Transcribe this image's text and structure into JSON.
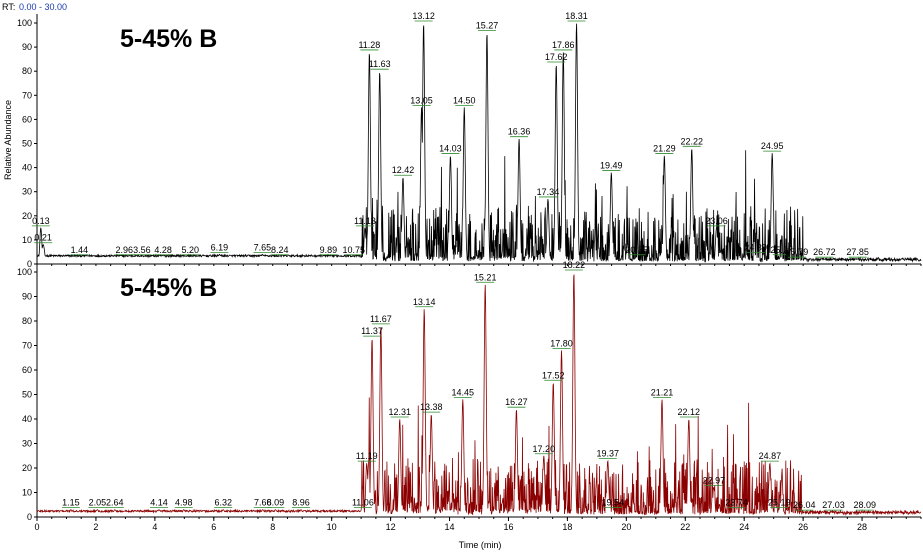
{
  "header": {
    "rt_prefix": "RT:",
    "rt_range": "0.00 - 30.00"
  },
  "colors": {
    "top_trace": "#000000",
    "bottom_trace": "#8b0000",
    "label_tick": "#2e8b2e",
    "rt_range_text": "#1a3caa"
  },
  "chart_data": [
    {
      "type": "line",
      "panel": "top",
      "annotation": "5-45% B",
      "ylabel": "Relative Abundance",
      "xlabel": "",
      "xlim": [
        0,
        30
      ],
      "ylim": [
        0,
        100
      ],
      "x_ticks": [
        0,
        2,
        4,
        6,
        8,
        10,
        12,
        14,
        16,
        18,
        20,
        22,
        24,
        26,
        28
      ],
      "y_ticks": [
        0,
        10,
        20,
        30,
        40,
        50,
        60,
        70,
        80,
        90,
        100
      ],
      "baseline_left": 3,
      "baseline_right": 1,
      "peaks": [
        {
          "rt": 0.13,
          "label": "0.13",
          "height": 15
        },
        {
          "rt": 0.21,
          "label": "0.21",
          "height": 8
        },
        {
          "rt": 1.44,
          "label": "1.44",
          "height": 3
        },
        {
          "rt": 2.96,
          "label": "2.96",
          "height": 3
        },
        {
          "rt": 3.56,
          "label": "3.56",
          "height": 3
        },
        {
          "rt": 4.28,
          "label": "4.28",
          "height": 3
        },
        {
          "rt": 5.2,
          "label": "5.20",
          "height": 3
        },
        {
          "rt": 6.19,
          "label": "6.19",
          "height": 4
        },
        {
          "rt": 7.65,
          "label": "7.65",
          "height": 4
        },
        {
          "rt": 8.24,
          "label": "8.24",
          "height": 3
        },
        {
          "rt": 9.89,
          "label": "9.89",
          "height": 3
        },
        {
          "rt": 10.75,
          "label": "10.75",
          "height": 3
        },
        {
          "rt": 11.13,
          "label": "11.13",
          "height": 15
        },
        {
          "rt": 11.28,
          "label": "11.28",
          "height": 88
        },
        {
          "rt": 11.63,
          "label": "11.63",
          "height": 80
        },
        {
          "rt": 12.42,
          "label": "12.42",
          "height": 36
        },
        {
          "rt": 13.05,
          "label": "13.05",
          "height": 65
        },
        {
          "rt": 13.12,
          "label": "13.12",
          "height": 100
        },
        {
          "rt": 14.03,
          "label": "14.03",
          "height": 45
        },
        {
          "rt": 14.5,
          "label": "14.50",
          "height": 65
        },
        {
          "rt": 15.27,
          "label": "15.27",
          "height": 96
        },
        {
          "rt": 16.36,
          "label": "16.36",
          "height": 52
        },
        {
          "rt": 17.34,
          "label": "17.34",
          "height": 27
        },
        {
          "rt": 17.62,
          "label": "17.62",
          "height": 83
        },
        {
          "rt": 17.86,
          "label": "17.86",
          "height": 88
        },
        {
          "rt": 18.31,
          "label": "18.31",
          "height": 100
        },
        {
          "rt": 19.49,
          "label": "19.49",
          "height": 38
        },
        {
          "rt": 20.35,
          "label": "20.35",
          "height": 3
        },
        {
          "rt": 21.29,
          "label": "21.29",
          "height": 45
        },
        {
          "rt": 22.22,
          "label": "22.22",
          "height": 48
        },
        {
          "rt": 23.06,
          "label": "23.06",
          "height": 15
        },
        {
          "rt": 24.39,
          "label": "24.39",
          "height": 4
        },
        {
          "rt": 24.95,
          "label": "24.95",
          "height": 46
        },
        {
          "rt": 25.27,
          "label": "25.27",
          "height": 3
        },
        {
          "rt": 25.79,
          "label": "25.79",
          "height": 2
        },
        {
          "rt": 26.72,
          "label": "26.72",
          "height": 2
        },
        {
          "rt": 27.85,
          "label": "27.85",
          "height": 2
        }
      ]
    },
    {
      "type": "line",
      "panel": "bottom",
      "annotation": "5-45% B",
      "ylabel": "",
      "xlabel": "Time (min)",
      "xlim": [
        0,
        30
      ],
      "ylim": [
        0,
        100
      ],
      "x_ticks": [
        0,
        2,
        4,
        6,
        8,
        10,
        12,
        14,
        16,
        18,
        20,
        22,
        24,
        26,
        28
      ],
      "y_ticks": [
        0,
        10,
        20,
        30,
        40,
        50,
        60,
        70,
        80,
        90,
        100
      ],
      "baseline_left": 2,
      "baseline_right": 1,
      "peaks": [
        {
          "rt": 1.15,
          "label": "1.15",
          "height": 3
        },
        {
          "rt": 2.05,
          "label": "2.05",
          "height": 3
        },
        {
          "rt": 2.64,
          "label": "2.64",
          "height": 3
        },
        {
          "rt": 4.14,
          "label": "4.14",
          "height": 3
        },
        {
          "rt": 4.98,
          "label": "4.98",
          "height": 3
        },
        {
          "rt": 6.32,
          "label": "6.32",
          "height": 3
        },
        {
          "rt": 7.66,
          "label": "7.66",
          "height": 3
        },
        {
          "rt": 8.09,
          "label": "8.09",
          "height": 3
        },
        {
          "rt": 8.96,
          "label": "8.96",
          "height": 3
        },
        {
          "rt": 11.06,
          "label": "11.06",
          "height": 3
        },
        {
          "rt": 11.19,
          "label": "11.19",
          "height": 22
        },
        {
          "rt": 11.37,
          "label": "11.37",
          "height": 73
        },
        {
          "rt": 11.67,
          "label": "11.67",
          "height": 78
        },
        {
          "rt": 12.31,
          "label": "12.31",
          "height": 40
        },
        {
          "rt": 13.14,
          "label": "13.14",
          "height": 85
        },
        {
          "rt": 13.38,
          "label": "13.38",
          "height": 42
        },
        {
          "rt": 14.45,
          "label": "14.45",
          "height": 48
        },
        {
          "rt": 15.21,
          "label": "15.21",
          "height": 95
        },
        {
          "rt": 16.27,
          "label": "16.27",
          "height": 44
        },
        {
          "rt": 17.2,
          "label": "17.20",
          "height": 25
        },
        {
          "rt": 17.52,
          "label": "17.52",
          "height": 55
        },
        {
          "rt": 17.8,
          "label": "17.80",
          "height": 68
        },
        {
          "rt": 18.22,
          "label": "18.22",
          "height": 100
        },
        {
          "rt": 19.37,
          "label": "19.37",
          "height": 23
        },
        {
          "rt": 19.54,
          "label": "19.54",
          "height": 3
        },
        {
          "rt": 21.21,
          "label": "21.21",
          "height": 48
        },
        {
          "rt": 22.12,
          "label": "22.12",
          "height": 40
        },
        {
          "rt": 22.97,
          "label": "22.97",
          "height": 12
        },
        {
          "rt": 23.74,
          "label": "23.74",
          "height": 3
        },
        {
          "rt": 24.87,
          "label": "24.87",
          "height": 22
        },
        {
          "rt": 25.19,
          "label": "25.19",
          "height": 3
        },
        {
          "rt": 26.04,
          "label": "26.04",
          "height": 2
        },
        {
          "rt": 27.03,
          "label": "27.03",
          "height": 2
        },
        {
          "rt": 28.09,
          "label": "28.09",
          "height": 2
        }
      ]
    }
  ]
}
